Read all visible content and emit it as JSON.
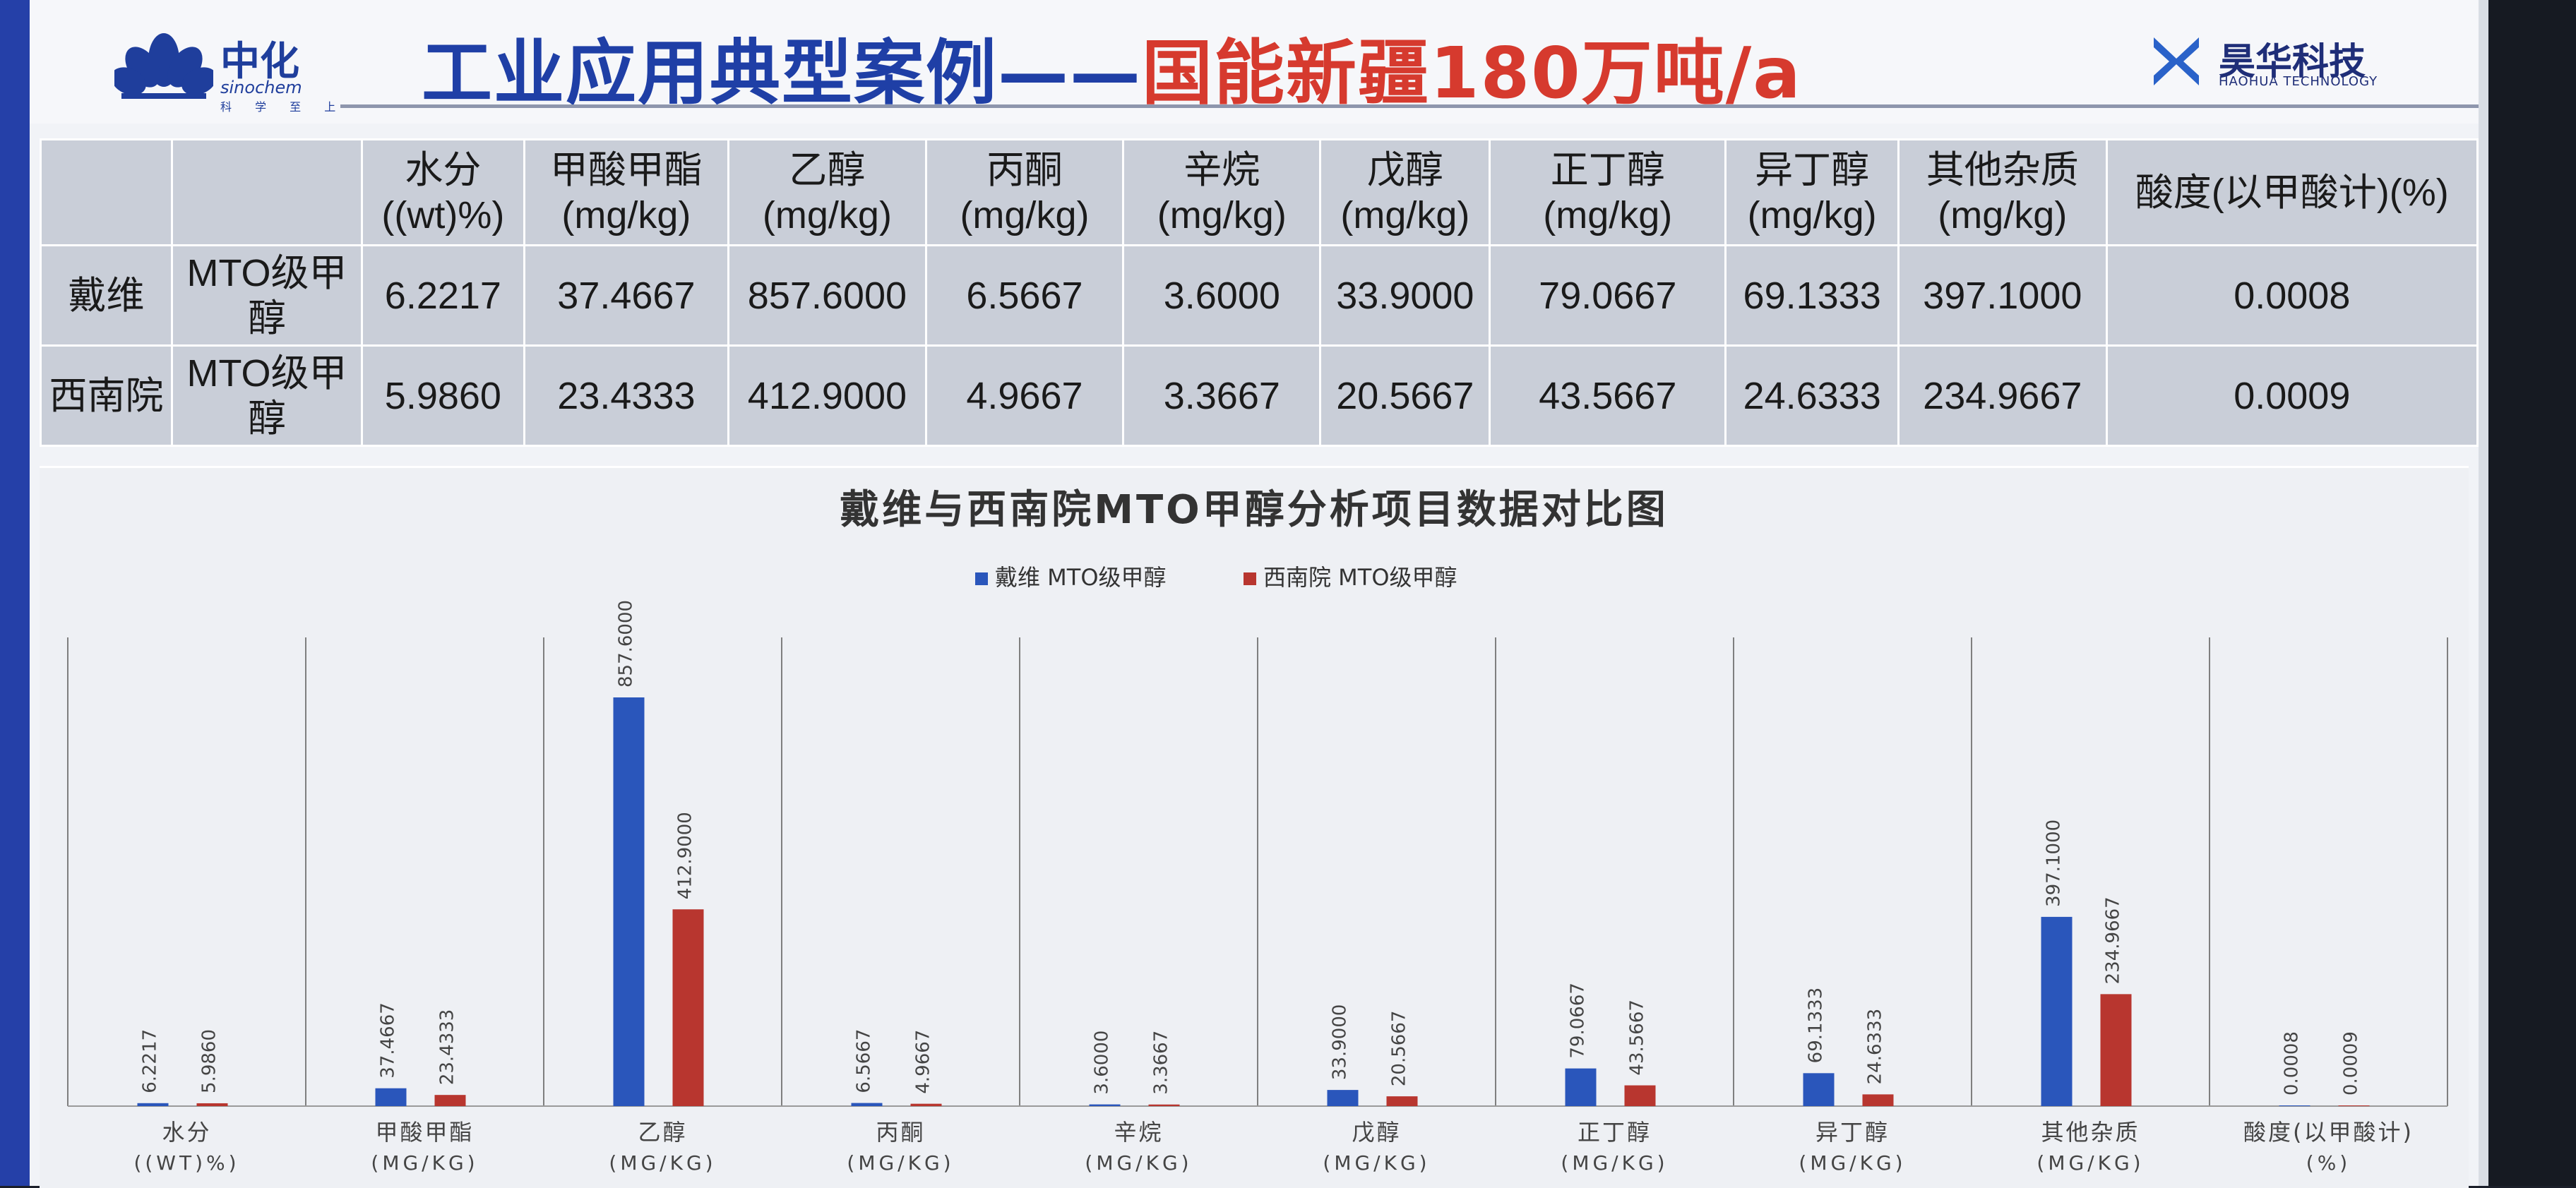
{
  "header": {
    "title_blue": "工业应用典型案例——",
    "title_red": "国能新疆180万吨/a",
    "logo_left": {
      "cn": "中化",
      "en": "sinochem",
      "motto": "科 学 至 上"
    },
    "logo_right": {
      "cn": "昊华科技",
      "en": "HAOHUA TECHNOLOGY"
    }
  },
  "table": {
    "columns": [
      "",
      "",
      "水分((wt)%)",
      "甲酸甲酯(mg/kg)",
      "乙醇(mg/kg)",
      "丙酮(mg/kg)",
      "辛烷(mg/kg)",
      "戊醇(mg/kg)",
      "正丁醇(mg/kg)",
      "异丁醇(mg/kg)",
      "其他杂质(mg/kg)",
      "酸度(以甲酸计)(%)"
    ],
    "rows": [
      {
        "source": "戴维",
        "grade": "MTO级甲醇",
        "values": [
          "6.2217",
          "37.4667",
          "857.6000",
          "6.5667",
          "3.6000",
          "33.9000",
          "79.0667",
          "69.1333",
          "397.1000",
          "0.0008"
        ]
      },
      {
        "source": "西南院",
        "grade": "MTO级甲醇",
        "values": [
          "5.9860",
          "23.4333",
          "412.9000",
          "4.9667",
          "3.3667",
          "20.5667",
          "43.5667",
          "24.6333",
          "234.9667",
          "0.0009"
        ]
      }
    ]
  },
  "chart_data": {
    "type": "bar",
    "title": "戴维与西南院MTO甲醇分析项目数据对比图",
    "legend_position": "top-center",
    "categories": [
      [
        "水分",
        "((WT)%)"
      ],
      [
        "甲酸甲酯",
        "(MG/KG)"
      ],
      [
        "乙醇",
        "(MG/KG)"
      ],
      [
        "丙酮",
        "(MG/KG)"
      ],
      [
        "辛烷",
        "(MG/KG)"
      ],
      [
        "戊醇",
        "(MG/KG)"
      ],
      [
        "正丁醇",
        "(MG/KG)"
      ],
      [
        "异丁醇",
        "(MG/KG)"
      ],
      [
        "其他杂质",
        "(MG/KG)"
      ],
      [
        "酸度(以甲酸计)",
        "(%)"
      ]
    ],
    "series": [
      {
        "name": "戴维 MTO级甲醇",
        "color": "#2a56bb",
        "values": [
          6.2217,
          37.4667,
          857.6,
          6.5667,
          3.6,
          33.9,
          79.0667,
          69.1333,
          397.1,
          0.0008
        ],
        "labels": [
          "6.2217",
          "37.4667",
          "857.6000",
          "6.5667",
          "3.6000",
          "33.9000",
          "79.0667",
          "69.1333",
          "397.1000",
          "0.0008"
        ]
      },
      {
        "name": "西南院 MTO级甲醇",
        "color": "#b8362f",
        "values": [
          5.986,
          23.4333,
          412.9,
          4.9667,
          3.3667,
          20.5667,
          43.5667,
          24.6333,
          234.9667,
          0.0009
        ],
        "labels": [
          "5.9860",
          "23.4333",
          "412.9000",
          "4.9667",
          "3.3667",
          "20.5667",
          "43.5667",
          "24.6333",
          "234.9667",
          "0.0009"
        ]
      }
    ],
    "ylim": [
      0,
      1000
    ],
    "grid": false
  }
}
